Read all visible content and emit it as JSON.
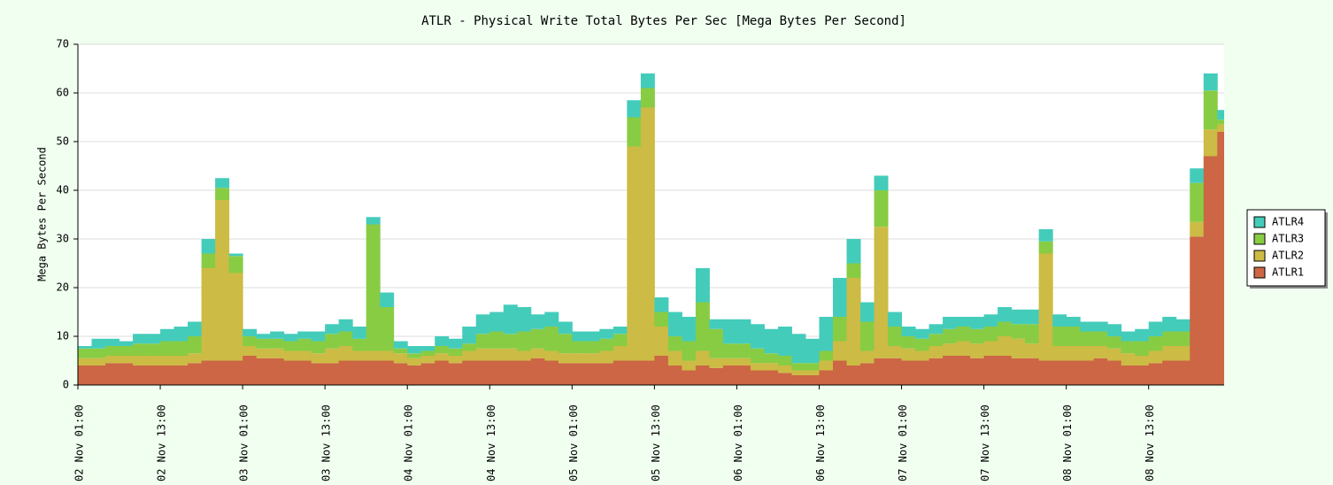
{
  "chart_data": {
    "type": "stacked-step-area",
    "title": "ATLR - Physical Write Total Bytes Per Sec [Mega Bytes Per Second]",
    "y_label": "Mega Bytes Per Second",
    "x": [
      0,
      2,
      4,
      6,
      8,
      10,
      12,
      14,
      16,
      18,
      20,
      22,
      24,
      26,
      28,
      30,
      32,
      34,
      36,
      38,
      40,
      42,
      44,
      46,
      48,
      50,
      52,
      54,
      56,
      58,
      60,
      62,
      64,
      66,
      68,
      70,
      72,
      74,
      76,
      78,
      80,
      82,
      84,
      86,
      88,
      90,
      92,
      94,
      96,
      98,
      100,
      102,
      104,
      106,
      108,
      110,
      112,
      114,
      116,
      118,
      120,
      122,
      124,
      126,
      128,
      130,
      132,
      134,
      136,
      138,
      140,
      142,
      144,
      146,
      148,
      150,
      152,
      154,
      156,
      158,
      160,
      162,
      164,
      166
    ],
    "xlim": [
      0,
      167
    ],
    "xticks": [
      {
        "value": 0,
        "label": "02 Nov 01:00"
      },
      {
        "value": 12,
        "label": "02 Nov 13:00"
      },
      {
        "value": 24,
        "label": "03 Nov 01:00"
      },
      {
        "value": 36,
        "label": "03 Nov 13:00"
      },
      {
        "value": 48,
        "label": "04 Nov 01:00"
      },
      {
        "value": 60,
        "label": "04 Nov 13:00"
      },
      {
        "value": 72,
        "label": "05 Nov 01:00"
      },
      {
        "value": 84,
        "label": "05 Nov 13:00"
      },
      {
        "value": 96,
        "label": "06 Nov 01:00"
      },
      {
        "value": 108,
        "label": "06 Nov 13:00"
      },
      {
        "value": 120,
        "label": "07 Nov 01:00"
      },
      {
        "value": 132,
        "label": "07 Nov 13:00"
      },
      {
        "value": 144,
        "label": "08 Nov 01:00"
      },
      {
        "value": 156,
        "label": "08 Nov 13:00"
      }
    ],
    "ylim": [
      0,
      70
    ],
    "yticks": [
      0,
      10,
      20,
      30,
      40,
      50,
      60,
      70
    ],
    "grid": true,
    "legend": "right",
    "series": [
      {
        "name": "ATLR1",
        "color": "#cc6644",
        "values": [
          4,
          4,
          4.5,
          4.5,
          4,
          4,
          4,
          4,
          4.5,
          5,
          5,
          5,
          6,
          5.5,
          5.5,
          5,
          5,
          4.5,
          4.5,
          5,
          5,
          5,
          5,
          4.5,
          4,
          4.5,
          5,
          4.5,
          5,
          5,
          5,
          5,
          5,
          5.5,
          5,
          4.5,
          4.5,
          4.5,
          4.5,
          5,
          5,
          5,
          6,
          4,
          3,
          4,
          3.5,
          4,
          4,
          3,
          3,
          2.5,
          2,
          2,
          3,
          5,
          4,
          4.5,
          5.5,
          5.5,
          5,
          5,
          5.5,
          6,
          6,
          5.5,
          6,
          6,
          5.5,
          5.5,
          5,
          5,
          5,
          5,
          5.5,
          5,
          4,
          4,
          4.5,
          5,
          5,
          30.5,
          47,
          52
        ]
      },
      {
        "name": "ATLR2",
        "color": "#ccbb44",
        "values": [
          1.5,
          1.5,
          1.5,
          1.5,
          2,
          2,
          2,
          2,
          2,
          19,
          33,
          18,
          2,
          2,
          2,
          2,
          2,
          2,
          3,
          3,
          2,
          2,
          2,
          2,
          1.5,
          1.5,
          1.5,
          1.5,
          2,
          2.5,
          2.5,
          2.5,
          2,
          2,
          2,
          2,
          2,
          2,
          2.5,
          3,
          44,
          52,
          6,
          3,
          2,
          3,
          2,
          1.5,
          1.5,
          1.5,
          1.5,
          1.5,
          1,
          1,
          2,
          4,
          18,
          2.5,
          27,
          2.5,
          2.5,
          2,
          2.5,
          2.5,
          3,
          3,
          3,
          4,
          4,
          3,
          22,
          3,
          3,
          3,
          2.5,
          2.5,
          2.5,
          2,
          2.5,
          3,
          3,
          3,
          5.5,
          1.5
        ]
      },
      {
        "name": "ATLR3",
        "color": "#88cc44",
        "values": [
          2,
          2,
          2,
          2,
          2.5,
          2.5,
          3,
          3,
          3.5,
          3,
          2.5,
          3.5,
          2,
          2,
          2,
          2,
          2.5,
          2.5,
          3,
          3,
          2.5,
          26,
          9,
          1,
          1,
          1,
          1.5,
          1.5,
          1.5,
          3,
          3.5,
          3,
          4,
          4,
          5,
          4,
          2.5,
          2.5,
          2.5,
          2.5,
          6,
          4,
          3,
          3,
          4,
          10,
          6,
          3,
          3,
          3,
          2,
          2,
          1.5,
          1.5,
          2,
          5,
          3,
          6,
          7.5,
          4,
          2.5,
          2.5,
          2.5,
          3,
          3,
          3,
          3,
          3,
          3,
          4,
          2.5,
          4,
          4,
          3,
          3,
          2.5,
          2.5,
          3,
          3,
          3,
          3,
          8,
          8,
          1
        ]
      },
      {
        "name": "ATLR4",
        "color": "#44ccbb",
        "values": [
          0.5,
          2,
          1.5,
          1,
          2,
          2,
          2.5,
          3,
          3,
          3,
          2,
          0.5,
          1.5,
          1,
          1.5,
          1.5,
          1.5,
          2,
          2,
          2.5,
          2.5,
          1.5,
          3,
          1.5,
          1.5,
          1,
          2,
          2,
          3.5,
          4,
          4,
          6,
          5,
          3,
          3,
          2.5,
          2,
          2,
          2,
          1.5,
          3.5,
          3,
          3,
          5,
          5,
          7,
          2,
          5,
          5,
          5,
          5,
          6,
          6,
          5,
          7,
          8,
          5,
          4,
          3,
          3,
          2,
          2,
          2,
          2.5,
          2,
          2.5,
          2.5,
          3,
          3,
          3,
          2.5,
          2.5,
          2,
          2,
          2,
          2.5,
          2,
          2.5,
          3,
          3,
          2.5,
          3,
          3.5,
          2
        ]
      }
    ]
  }
}
